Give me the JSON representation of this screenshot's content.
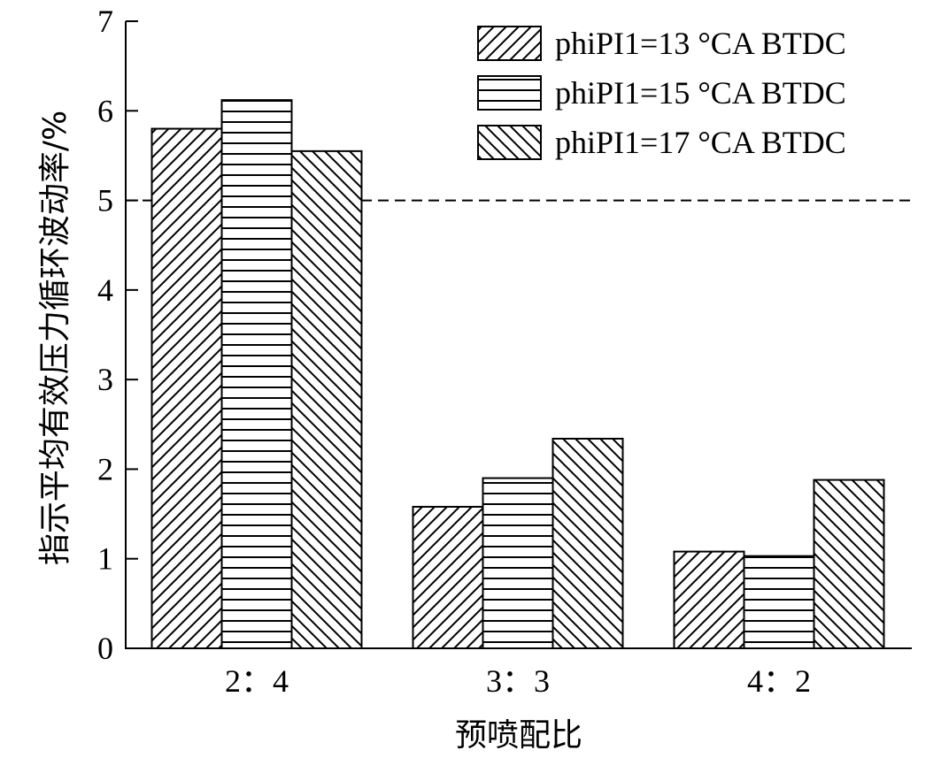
{
  "chart_data": {
    "type": "bar",
    "title": "",
    "xlabel": "预喷配比",
    "ylabel": "指示平均有效压力循环波动率/%",
    "categories": [
      "2：4",
      "3：3",
      "4：2"
    ],
    "series": [
      {
        "name": "phiPI1=13 °CA BTDC",
        "values": [
          5.8,
          1.58,
          1.08
        ],
        "pattern": "diagonal-up"
      },
      {
        "name": "phiPI1=15 °CA BTDC",
        "values": [
          6.12,
          1.9,
          1.03
        ],
        "pattern": "horizontal"
      },
      {
        "name": "phiPI1=17 °CA BTDC",
        "values": [
          5.55,
          2.34,
          1.88
        ],
        "pattern": "diagonal-down"
      }
    ],
    "ylim": [
      0,
      7
    ],
    "yticks": [
      0,
      1,
      2,
      3,
      4,
      5,
      6,
      7
    ],
    "reference_line": {
      "value": 5,
      "style": "dashed"
    },
    "legend_position": "top-right",
    "grid": false,
    "colors": {
      "stroke": "#000000",
      "fill": "#ffffff"
    }
  }
}
